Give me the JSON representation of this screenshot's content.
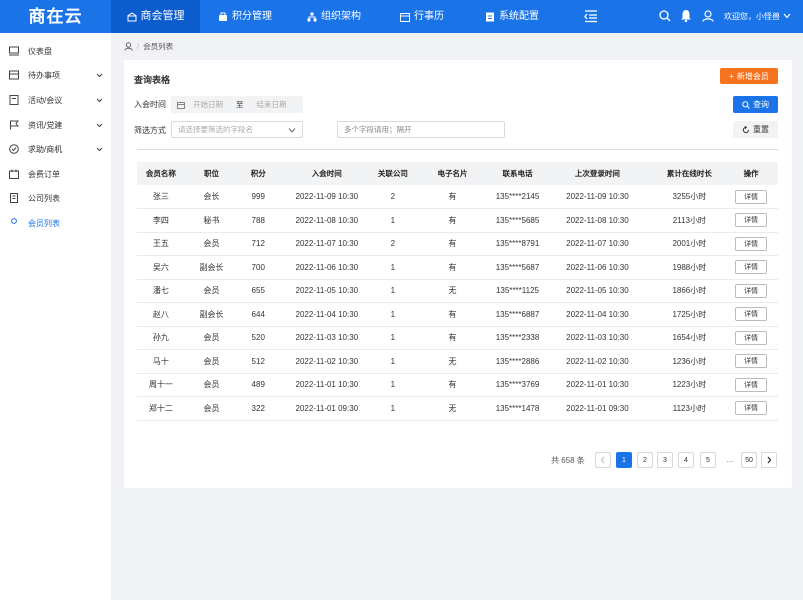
{
  "header": {
    "logo": "商在云",
    "nav": [
      "商会管理",
      "积分管理",
      "组织架构",
      "行事历",
      "系统配置"
    ],
    "active_nav": 0,
    "welcome": "欢迎您，小怪兽"
  },
  "sidebar": {
    "items": [
      {
        "label": "仪表盘",
        "expandable": false
      },
      {
        "label": "待办事项",
        "expandable": true
      },
      {
        "label": "活动/会议",
        "expandable": true
      },
      {
        "label": "资讯/党建",
        "expandable": true
      },
      {
        "label": "求助/商机",
        "expandable": true
      },
      {
        "label": "会费订单",
        "expandable": false
      },
      {
        "label": "公司列表",
        "expandable": false
      },
      {
        "label": "会员列表",
        "expandable": false
      }
    ],
    "active_item": 7
  },
  "breadcrumb": "会员列表",
  "query": {
    "title": "查询表格",
    "add_button": "新增会员",
    "date_label": "入会时间",
    "start_placeholder": "开始日期",
    "date_separator": "至",
    "end_placeholder": "结束日期",
    "search_button": "查询",
    "filter_label": "筛选方式",
    "filter_placeholder": "请选择要筛选的字段名",
    "keyword_placeholder": "多个字段请用；隔开",
    "reset_button": "重置"
  },
  "table": {
    "columns": [
      "会员名称",
      "职位",
      "积分",
      "入会时间",
      "关联公司",
      "电子名片",
      "联系电话",
      "上次登录时间",
      "累计在线时长",
      "操作"
    ],
    "rows": [
      [
        "张三",
        "会长",
        "999",
        "2022-11-09 10:30",
        "2",
        "有",
        "135****2145",
        "2022-11-09 10:30",
        "3255小时",
        "详情"
      ],
      [
        "李四",
        "秘书",
        "788",
        "2022-11-08 10:30",
        "1",
        "有",
        "135****5685",
        "2022-11-08 10:30",
        "2113小时",
        "详情"
      ],
      [
        "王五",
        "会员",
        "712",
        "2022-11-07 10:30",
        "2",
        "有",
        "135****8791",
        "2022-11-07 10:30",
        "2001小时",
        "详情"
      ],
      [
        "吴六",
        "副会长",
        "700",
        "2022-11-06 10:30",
        "1",
        "有",
        "135****5687",
        "2022-11-06 10:30",
        "1988小时",
        "详情"
      ],
      [
        "潘七",
        "会员",
        "655",
        "2022-11-05 10:30",
        "1",
        "无",
        "135****1125",
        "2022-11-05 10:30",
        "1866小时",
        "详情"
      ],
      [
        "赵八",
        "副会长",
        "644",
        "2022-11-04 10:30",
        "1",
        "有",
        "135****6887",
        "2022-11-04 10:30",
        "1725小时",
        "详情"
      ],
      [
        "孙九",
        "会员",
        "520",
        "2022-11-03 10:30",
        "1",
        "有",
        "135****2338",
        "2022-11-03 10:30",
        "1654小时",
        "详情"
      ],
      [
        "马十",
        "会员",
        "512",
        "2022-11-02 10:30",
        "1",
        "无",
        "135****2886",
        "2022-11-02 10:30",
        "1236小时",
        "详情"
      ],
      [
        "周十一",
        "会员",
        "489",
        "2022-11-01 10:30",
        "1",
        "有",
        "135****3769",
        "2022-11-01 10:30",
        "1223小时",
        "详情"
      ],
      [
        "郑十二",
        "会员",
        "322",
        "2022-11-01 09:30",
        "1",
        "无",
        "135****1478",
        "2022-11-01 09:30",
        "1123小时",
        "详情"
      ]
    ]
  },
  "pagination": {
    "total": "共 658 条",
    "pages": [
      "1",
      "2",
      "3",
      "4",
      "5",
      "…",
      "50"
    ],
    "current": 0
  }
}
